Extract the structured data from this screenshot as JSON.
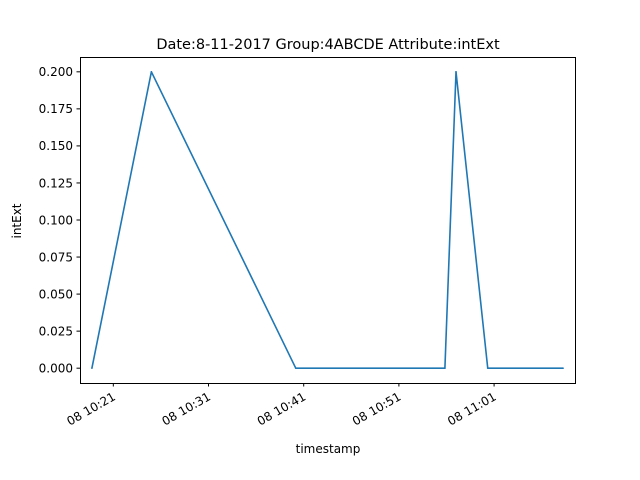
{
  "chart_data": {
    "type": "line",
    "title": "Date:8-11-2017  Group:4ABCDE Attribute:intExt",
    "xlabel": "timestamp",
    "ylabel": "intExt",
    "xlim": [
      "08 10:17:30",
      "11:09:30"
    ],
    "ylim": [
      -0.01,
      0.21
    ],
    "grid": false,
    "x_ticks": [
      {
        "t": "10:21",
        "label": "08 10:21"
      },
      {
        "t": "10:31",
        "label": "08 10:31"
      },
      {
        "t": "10:41",
        "label": "08 10:41"
      },
      {
        "t": "10:51",
        "label": "08 10:51"
      },
      {
        "t": "11:01",
        "label": "08 11:01"
      }
    ],
    "y_ticks": [
      {
        "v": 0.0,
        "label": "0.000"
      },
      {
        "v": 0.025,
        "label": "0.025"
      },
      {
        "v": 0.05,
        "label": "0.050"
      },
      {
        "v": 0.075,
        "label": "0.075"
      },
      {
        "v": 0.1,
        "label": "0.100"
      },
      {
        "v": 0.125,
        "label": "0.125"
      },
      {
        "v": 0.15,
        "label": "0.150"
      },
      {
        "v": 0.175,
        "label": "0.175"
      },
      {
        "v": 0.2,
        "label": "0.200"
      }
    ],
    "series": [
      {
        "color": "#1f77b4",
        "points": [
          {
            "t": "10:18:45",
            "y": 0.0
          },
          {
            "t": "10:25:00",
            "y": 0.2
          },
          {
            "t": "10:40:10",
            "y": 0.0
          },
          {
            "t": "10:55:50",
            "y": 0.0
          },
          {
            "t": "10:57:00",
            "y": 0.2
          },
          {
            "t": "11:00:20",
            "y": 0.0
          },
          {
            "t": "11:08:15",
            "y": 0.0
          }
        ]
      }
    ]
  }
}
